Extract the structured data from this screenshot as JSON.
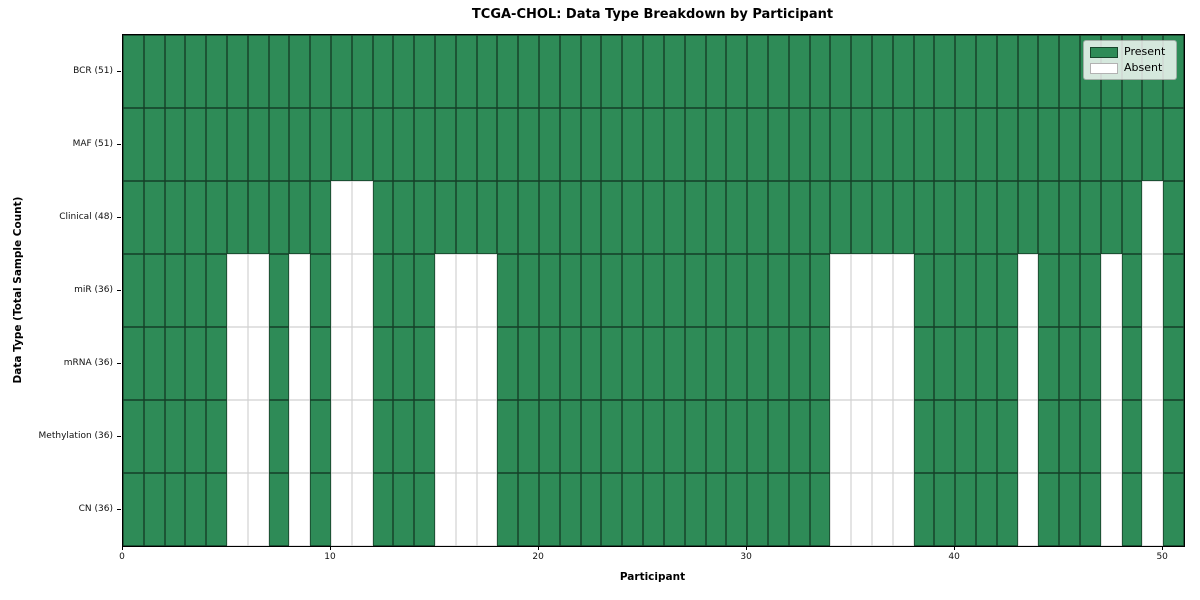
{
  "chart_data": {
    "type": "heatmap",
    "title": "TCGA-CHOL: Data Type Breakdown by Participant",
    "xlabel": "Participant",
    "ylabel": "Data Type (Total Sample Count)",
    "x_range": [
      0,
      51
    ],
    "n_participants": 51,
    "x_ticks": [
      0,
      10,
      20,
      30,
      40,
      50
    ],
    "grid": true,
    "legend_position": "upper right",
    "legend": {
      "entries": [
        {
          "label": "Present",
          "color": "#2e8b57"
        },
        {
          "label": "Absent",
          "color": "#ffffff"
        }
      ]
    },
    "rows": [
      {
        "label": "BCR (51)",
        "data_type": "BCR",
        "present_count": 51,
        "absent_participants": []
      },
      {
        "label": "MAF (51)",
        "data_type": "MAF",
        "present_count": 51,
        "absent_participants": []
      },
      {
        "label": "Clinical (48)",
        "data_type": "Clinical",
        "present_count": 48,
        "absent_participants": [
          10,
          11,
          49
        ]
      },
      {
        "label": "miR (36)",
        "data_type": "miR",
        "present_count": 36,
        "absent_participants": [
          5,
          6,
          8,
          10,
          11,
          15,
          16,
          17,
          34,
          35,
          36,
          37,
          43,
          47,
          49
        ]
      },
      {
        "label": "mRNA (36)",
        "data_type": "mRNA",
        "present_count": 36,
        "absent_participants": [
          5,
          6,
          8,
          10,
          11,
          15,
          16,
          17,
          34,
          35,
          36,
          37,
          43,
          47,
          49
        ]
      },
      {
        "label": "Methylation (36)",
        "data_type": "Methylation",
        "present_count": 36,
        "absent_participants": [
          5,
          6,
          8,
          10,
          11,
          15,
          16,
          17,
          34,
          35,
          36,
          37,
          43,
          47,
          49
        ]
      },
      {
        "label": "CN (36)",
        "data_type": "CN",
        "present_count": 36,
        "absent_participants": [
          5,
          6,
          8,
          10,
          11,
          15,
          16,
          17,
          34,
          35,
          36,
          37,
          43,
          47,
          49
        ]
      }
    ],
    "colors": {
      "present": "#2e8b57",
      "absent": "#ffffff",
      "cell_edge": "#103522",
      "grid_light": "#c9c9c9",
      "axis": "#000000"
    }
  }
}
